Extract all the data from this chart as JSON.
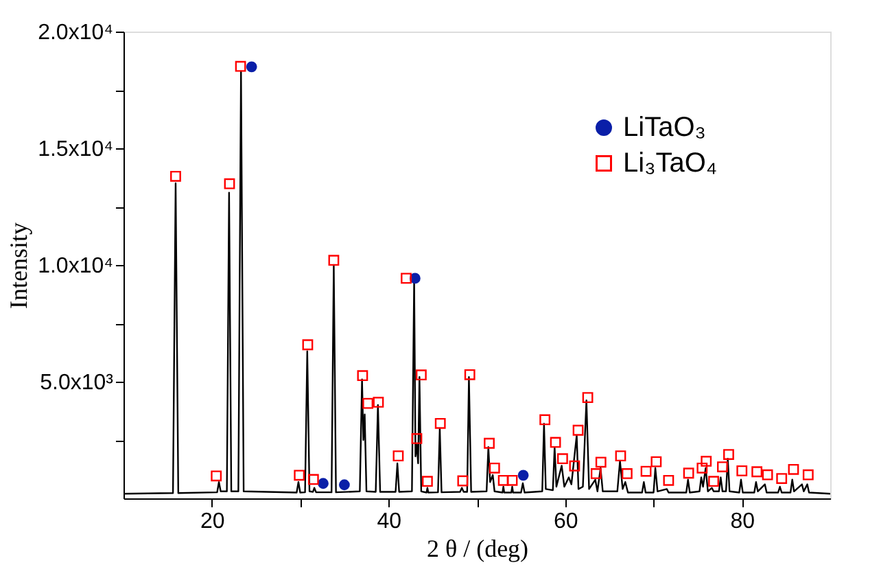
{
  "chart_data": {
    "type": "line",
    "xlabel": "2 θ / (deg)",
    "ylabel": "Intensity",
    "xlim": [
      10,
      90
    ],
    "xticks": [
      20,
      40,
      60,
      80,
      {
        "value": 30,
        "label": null
      },
      {
        "value": 50,
        "label": null
      },
      {
        "value": 70,
        "label": null
      }
    ],
    "ylim": [
      0,
      20000
    ],
    "yticks": [
      {
        "value": 5000,
        "label": "5.0x10³"
      },
      {
        "value": 10000,
        "label": "1.0x10⁴"
      },
      {
        "value": 15000,
        "label": "1.5x10⁴"
      },
      {
        "value": 20000,
        "label": "2.0x10⁴"
      },
      {
        "value": 2500,
        "label": null
      },
      {
        "value": 7500,
        "label": null
      },
      {
        "value": 12500,
        "label": null
      },
      {
        "value": 17500,
        "label": null
      }
    ],
    "grid": false,
    "legend": "top right",
    "series": [
      {
        "color": "#000000",
        "line_style": "solid",
        "x": [
          10,
          15.6,
          15.9,
          16.2,
          20.6,
          20.8,
          21.0,
          21.7,
          21.95,
          22.2,
          23.0,
          23.3,
          23.6,
          29.6,
          29.8,
          30.0,
          30.55,
          30.8,
          31.05,
          31.45,
          31.6,
          31.8,
          33.55,
          33.8,
          34.05,
          36.75,
          37.0,
          37.15,
          37.3,
          37.5,
          38.55,
          38.8,
          39.05,
          40.8,
          41.0,
          41.2,
          42.65,
          42.9,
          43.05,
          43.2,
          43.35,
          43.5,
          43.7,
          44.3,
          44.4,
          44.5,
          45.6,
          45.8,
          46.0,
          48.1,
          48.3,
          48.5,
          48.9,
          49.1,
          49.35,
          51.1,
          51.3,
          51.5,
          51.8,
          52.0,
          52.9,
          53.0,
          53.1,
          53.9,
          54.0,
          54.1,
          55.0,
          55.2,
          55.4,
          57.4,
          57.6,
          57.8,
          58.6,
          58.8,
          59.0,
          59.6,
          59.9,
          60.4,
          60.7,
          61.3,
          61.5,
          62.0,
          62.4,
          62.7,
          63.4,
          63.65,
          64.0,
          64.25,
          65.9,
          66.2,
          66.5,
          66.8,
          67.1,
          68.7,
          68.9,
          69.1,
          70.0,
          70.2,
          70.45,
          71.5,
          71.7,
          73.7,
          73.9,
          74.1,
          75.2,
          75.4,
          75.6,
          75.9,
          76.15,
          76.6,
          76.8,
          77.4,
          77.6,
          77.8,
          78.2,
          78.4,
          78.6,
          79.7,
          79.9,
          80.1,
          81.4,
          81.6,
          81.8,
          82.6,
          82.8,
          84.1,
          84.3,
          84.5,
          85.5,
          85.7,
          85.9,
          86.8,
          87.0,
          87.4,
          87.6,
          90
        ],
        "values": [
          200,
          230,
          13500,
          230,
          260,
          700,
          300,
          300,
          13100,
          300,
          300,
          18300,
          300,
          250,
          700,
          250,
          260,
          6300,
          300,
          280,
          450,
          260,
          260,
          10000,
          260,
          300,
          5100,
          2500,
          3600,
          300,
          280,
          4000,
          280,
          280,
          1500,
          280,
          300,
          9400,
          1800,
          2300,
          1500,
          5200,
          300,
          250,
          450,
          250,
          260,
          3000,
          260,
          280,
          450,
          280,
          280,
          5200,
          280,
          300,
          2200,
          700,
          1000,
          300,
          250,
          500,
          250,
          250,
          500,
          250,
          250,
          650,
          250,
          300,
          3200,
          400,
          350,
          2200,
          500,
          1400,
          500,
          900,
          600,
          2700,
          400,
          500,
          4200,
          400,
          800,
          300,
          1300,
          300,
          300,
          1600,
          400,
          700,
          250,
          250,
          700,
          250,
          250,
          1300,
          300,
          400,
          250,
          250,
          800,
          250,
          300,
          900,
          500,
          1300,
          300,
          450,
          300,
          300,
          900,
          300,
          300,
          1700,
          300,
          250,
          800,
          250,
          250,
          700,
          300,
          600,
          250,
          250,
          500,
          250,
          250,
          800,
          300,
          600,
          300,
          600,
          250,
          200
        ]
      },
      {
        "type": "scatter",
        "name": "LiTaO₃",
        "color": "#0a1fa8",
        "marker": "circle",
        "x": [
          24.5,
          32.6,
          35.0,
          43.0,
          55.25
        ],
        "values": [
          18490,
          640,
          580,
          9430,
          990
        ]
      },
      {
        "type": "scatter",
        "name": "Li₃TaO₄",
        "color": "#ff0000",
        "marker": "square",
        "x": [
          15.9,
          20.5,
          22.0,
          23.25,
          29.9,
          30.85,
          31.5,
          33.8,
          37.06,
          37.66,
          38.85,
          41.1,
          42.0,
          43.2,
          43.7,
          44.4,
          45.86,
          48.4,
          49.2,
          51.4,
          52.0,
          53.0,
          54.0,
          57.7,
          58.9,
          59.7,
          61.06,
          61.46,
          62.55,
          63.5,
          64.04,
          66.27,
          67.0,
          69.15,
          70.3,
          71.7,
          73.97,
          75.5,
          75.96,
          76.8,
          77.8,
          78.5,
          80.0,
          81.7,
          82.9,
          84.5,
          85.84,
          87.5
        ],
        "values": [
          13800,
          960,
          13480,
          18510,
          990,
          6580,
          810,
          10200,
          5260,
          4070,
          4120,
          1820,
          9430,
          2560,
          5290,
          730,
          3210,
          750,
          5300,
          2360,
          1300,
          770,
          770,
          3370,
          2400,
          1700,
          1390,
          2920,
          4320,
          1060,
          1550,
          1820,
          1060,
          1160,
          1570,
          770,
          1080,
          1300,
          1590,
          730,
          1350,
          1880,
          1180,
          1140,
          1010,
          850,
          1240,
          1010
        ]
      }
    ]
  }
}
